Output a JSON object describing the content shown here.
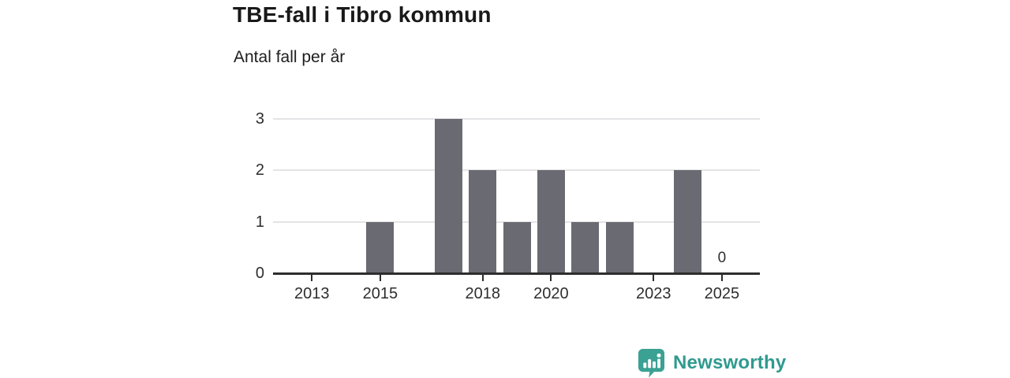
{
  "header": {
    "title": "TBE-fall i Tibro kommun",
    "subtitle": "Antal fall per år"
  },
  "chart_data": {
    "type": "bar",
    "title": "TBE-fall i Tibro kommun",
    "subtitle": "Antal fall per år",
    "xlabel": "",
    "ylabel": "Antal fall per år",
    "categories": [
      "2012",
      "2013",
      "2014",
      "2015",
      "2016",
      "2017",
      "2018",
      "2019",
      "2020",
      "2021",
      "2022",
      "2023",
      "2024",
      "2025"
    ],
    "values": [
      0,
      0,
      0,
      1,
      0,
      3,
      2,
      1,
      2,
      1,
      1,
      0,
      2,
      0
    ],
    "ylim": [
      0,
      3
    ],
    "yticks": [
      0,
      1,
      2,
      3
    ],
    "xtick_labels": [
      "2013",
      "2015",
      "2018",
      "2020",
      "2023",
      "2025"
    ],
    "grid": true,
    "legend_position": "none",
    "bar_color": "#6a6a72",
    "annotations": [
      {
        "category": "2025",
        "label": "0"
      }
    ]
  },
  "branding": {
    "logo_text": "Newsworthy",
    "logo_text_color": "#2f9a8f",
    "logo_icon": "newsworthy-speech-bubble-bar-chart-icon",
    "logo_icon_color": "#3ba193"
  }
}
